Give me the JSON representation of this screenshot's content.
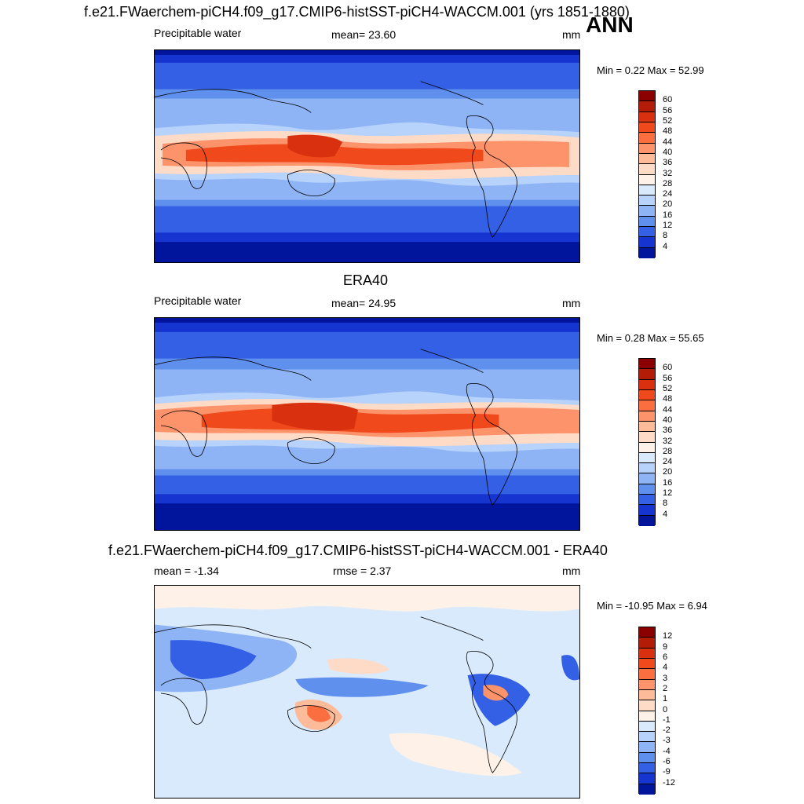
{
  "season": "ANN",
  "chart_data": [
    {
      "type": "heatmap",
      "title": "f.e21.FWaerchem-piCH4.f09_g17.CMIP6-histSST-piCH4-WACCM.001 (yrs 1851-1880)",
      "left_label": "Precipitable water",
      "center_label": "mean=  23.60",
      "units": "mm",
      "minmax": "Min =   0.22 Max =  52.99",
      "mean": 23.6,
      "min": 0.22,
      "max": 52.99,
      "levels": [
        "60",
        "56",
        "52",
        "48",
        "44",
        "40",
        "36",
        "32",
        "28",
        "24",
        "20",
        "16",
        "12",
        "8",
        "4"
      ],
      "colors": [
        "#8b0000",
        "#b31c06",
        "#d9300f",
        "#f04a1c",
        "#fa6e3f",
        "#fc936b",
        "#fdbb9a",
        "#fedbc7",
        "#fef2e8",
        "#d9eafd",
        "#b7d2fb",
        "#8eb4f6",
        "#6090ee",
        "#3360e4",
        "#1534d0",
        "#00149c"
      ]
    },
    {
      "type": "heatmap",
      "title": "ERA40",
      "left_label": "Precipitable water",
      "center_label": "mean=  24.95",
      "units": "mm",
      "minmax": "Min =   0.28 Max =  55.65",
      "mean": 24.95,
      "min": 0.28,
      "max": 55.65,
      "levels": [
        "60",
        "56",
        "52",
        "48",
        "44",
        "40",
        "36",
        "32",
        "28",
        "24",
        "20",
        "16",
        "12",
        "8",
        "4"
      ],
      "colors": [
        "#8b0000",
        "#b31c06",
        "#d9300f",
        "#f04a1c",
        "#fa6e3f",
        "#fc936b",
        "#fdbb9a",
        "#fedbc7",
        "#fef2e8",
        "#d9eafd",
        "#b7d2fb",
        "#8eb4f6",
        "#6090ee",
        "#3360e4",
        "#1534d0",
        "#00149c"
      ]
    },
    {
      "type": "heatmap",
      "title": "f.e21.FWaerchem-piCH4.f09_g17.CMIP6-histSST-piCH4-WACCM.001 - ERA40",
      "left_label": "mean =  -1.34",
      "center_label": "rmse =   2.37",
      "units": "mm",
      "minmax": "Min = -10.95 Max =   6.94",
      "mean": -1.34,
      "rmse": 2.37,
      "min": -10.95,
      "max": 6.94,
      "levels": [
        "12",
        "9",
        "6",
        "4",
        "3",
        "2",
        "1",
        "0",
        "-1",
        "-2",
        "-3",
        "-4",
        "-6",
        "-9",
        "-12"
      ],
      "colors": [
        "#8b0000",
        "#b31c06",
        "#d9300f",
        "#f04a1c",
        "#fa6e3f",
        "#fc936b",
        "#fdbb9a",
        "#fedbc7",
        "#fef2e8",
        "#d9eafd",
        "#b7d2fb",
        "#8eb4f6",
        "#6090ee",
        "#3360e4",
        "#1534d0",
        "#00149c"
      ]
    }
  ]
}
